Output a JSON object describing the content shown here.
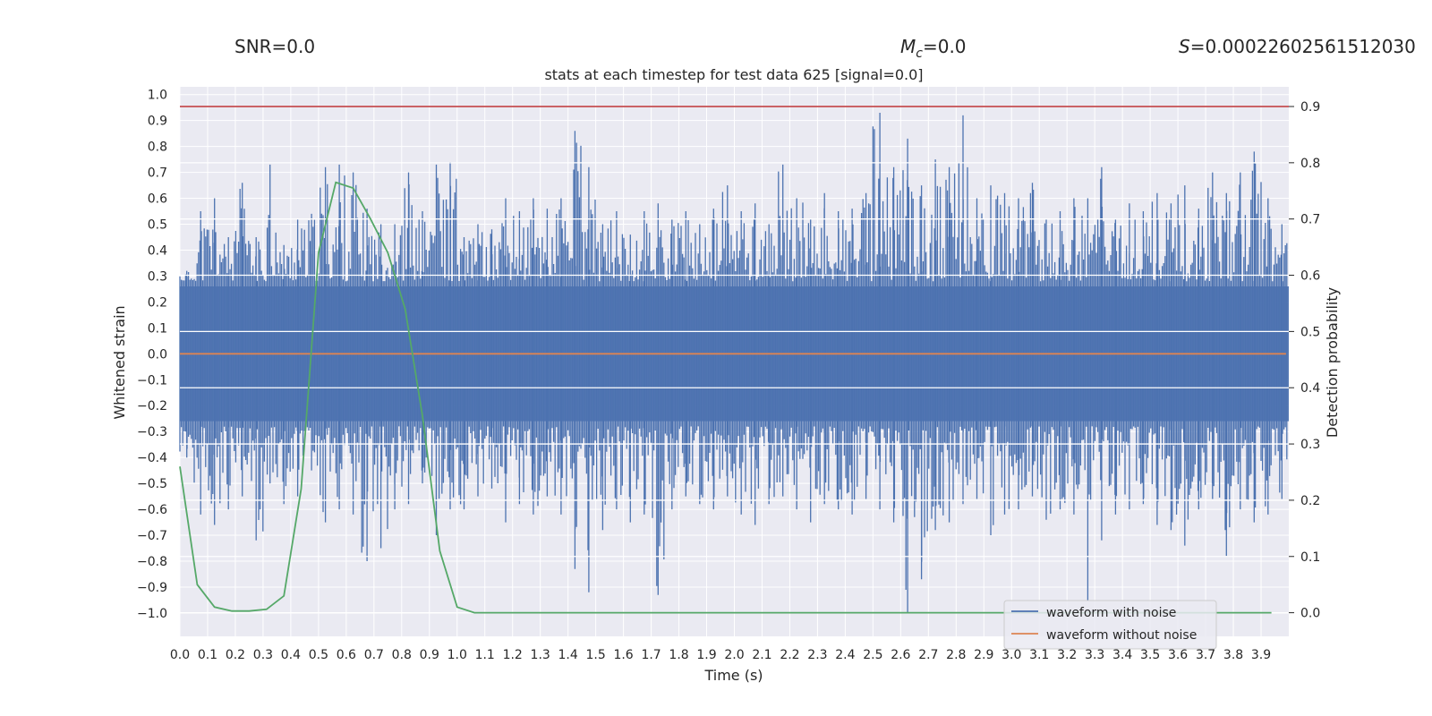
{
  "header": {
    "snr_label": "SNR=0.0",
    "mc_symbol": "M",
    "mc_sub": "c",
    "mc_value": "=0.0",
    "s_symbol": "S",
    "s_value": "=0.00022602561512030"
  },
  "chart_data": {
    "type": "line",
    "title": "stats at each timestep for test data 625 [signal=0.0]",
    "xlabel": "Time (s)",
    "ylabel": "Whitened strain",
    "y2label": "Detection probability",
    "xlim": [
      0.0,
      4.0
    ],
    "ylim": [
      -1.09,
      1.03
    ],
    "y2lim": [
      -0.042,
      0.935
    ],
    "grid": true,
    "legend": "lower-right",
    "x_ticks": [
      "0.0",
      "0.1",
      "0.2",
      "0.3",
      "0.4",
      "0.5",
      "0.6",
      "0.7",
      "0.8",
      "0.9",
      "1.0",
      "1.1",
      "1.2",
      "1.3",
      "1.4",
      "1.5",
      "1.6",
      "1.7",
      "1.8",
      "1.9",
      "2.0",
      "2.1",
      "2.2",
      "2.3",
      "2.4",
      "2.5",
      "2.6",
      "2.7",
      "2.8",
      "2.9",
      "3.0",
      "3.1",
      "3.2",
      "3.3",
      "3.4",
      "3.5",
      "3.6",
      "3.7",
      "3.8",
      "3.9"
    ],
    "y_ticks": [
      "1.0",
      "0.9",
      "0.8",
      "0.7",
      "0.6",
      "0.5",
      "0.4",
      "0.3",
      "0.2",
      "0.1",
      "0.0",
      "−0.1",
      "−0.2",
      "−0.3",
      "−0.4",
      "−0.5",
      "−0.6",
      "−0.7",
      "−0.8",
      "−0.9",
      "−1.0"
    ],
    "y2_ticks": [
      "0.9",
      "0.8",
      "0.7",
      "0.6",
      "0.5",
      "0.4",
      "0.3",
      "0.2",
      "0.1",
      "0.0"
    ],
    "threshold": {
      "y2": 0.9,
      "color": "#c44e52"
    },
    "series": [
      {
        "name": "waveform with noise",
        "axis": "left",
        "color": "#4c72b0",
        "x": [
          0.0,
          0.05,
          0.1,
          0.15,
          0.2,
          0.25,
          0.3,
          0.35,
          0.4,
          0.45,
          0.5,
          0.55,
          0.6,
          0.65,
          0.7,
          0.75,
          0.8,
          0.85,
          0.9,
          0.95,
          1.0,
          1.05,
          1.1,
          1.15,
          1.2,
          1.25,
          1.3,
          1.35,
          1.4,
          1.45,
          1.5,
          1.55,
          1.6,
          1.65,
          1.7,
          1.75,
          1.8,
          1.85,
          1.9,
          1.95,
          2.0,
          2.05,
          2.1,
          2.15,
          2.2,
          2.25,
          2.3,
          2.35,
          2.4,
          2.45,
          2.5,
          2.55,
          2.6,
          2.65,
          2.7,
          2.75,
          2.8,
          2.85,
          2.9,
          2.95,
          3.0,
          3.05,
          3.1,
          3.15,
          3.2,
          3.25,
          3.3,
          3.35,
          3.4,
          3.45,
          3.5,
          3.55,
          3.6,
          3.65,
          3.7,
          3.75,
          3.8,
          3.85,
          3.9,
          3.95
        ],
        "y_max": [
          0.32,
          0.55,
          0.6,
          0.45,
          0.66,
          0.45,
          0.73,
          0.42,
          0.52,
          0.54,
          0.72,
          0.73,
          0.7,
          0.56,
          0.5,
          0.5,
          0.7,
          0.55,
          0.73,
          0.74,
          0.45,
          0.5,
          0.48,
          0.6,
          0.55,
          0.6,
          0.56,
          0.6,
          0.86,
          0.72,
          0.5,
          0.55,
          0.46,
          0.55,
          0.58,
          0.52,
          0.55,
          0.5,
          0.56,
          0.65,
          0.55,
          0.58,
          0.5,
          0.73,
          0.6,
          0.52,
          0.62,
          0.55,
          0.56,
          0.62,
          0.93,
          0.72,
          0.83,
          0.65,
          0.75,
          0.72,
          0.92,
          0.6,
          0.65,
          0.62,
          0.6,
          0.66,
          0.52,
          0.55,
          0.6,
          0.6,
          0.72,
          0.52,
          0.58,
          0.55,
          0.62,
          0.58,
          0.65,
          0.56,
          0.7,
          0.62,
          0.7,
          0.78,
          0.6,
          0.5
        ],
        "y_min": [
          -0.4,
          -0.62,
          -0.66,
          -0.6,
          -0.55,
          -0.72,
          -0.5,
          -0.58,
          -0.55,
          -0.45,
          -0.65,
          -0.6,
          -0.62,
          -0.8,
          -0.75,
          -0.6,
          -0.58,
          -0.5,
          -0.7,
          -0.6,
          -0.6,
          -0.55,
          -0.52,
          -0.65,
          -0.58,
          -0.62,
          -0.55,
          -0.62,
          -0.83,
          -0.92,
          -0.68,
          -0.6,
          -0.65,
          -0.62,
          -0.93,
          -0.6,
          -0.55,
          -0.58,
          -0.6,
          -0.55,
          -0.62,
          -0.66,
          -0.58,
          -0.55,
          -0.6,
          -0.65,
          -0.58,
          -0.6,
          -0.62,
          -0.56,
          -0.6,
          -0.65,
          -1.0,
          -0.87,
          -0.68,
          -0.65,
          -0.58,
          -0.56,
          -0.7,
          -0.62,
          -0.6,
          -0.55,
          -0.64,
          -0.6,
          -0.62,
          -0.95,
          -0.72,
          -0.62,
          -0.6,
          -0.58,
          -0.66,
          -0.68,
          -0.74,
          -0.6,
          -0.56,
          -0.78,
          -0.6,
          -0.65,
          -0.62,
          -0.56
        ],
        "band": 0.26
      },
      {
        "name": "waveform without noise",
        "axis": "left",
        "color": "#dd8452",
        "x": [
          0.0,
          3.99
        ],
        "y": [
          0.0,
          0.0
        ]
      },
      {
        "axis": "right",
        "color": "#55a868",
        "x": [
          0.0,
          0.0625,
          0.125,
          0.1875,
          0.25,
          0.3125,
          0.375,
          0.4375,
          0.5,
          0.5625,
          0.625,
          0.6875,
          0.75,
          0.8125,
          0.875,
          0.9375,
          1.0,
          1.0625,
          1.125,
          3.9375
        ],
        "y": [
          0.26,
          0.05,
          0.01,
          0.003,
          0.003,
          0.006,
          0.03,
          0.22,
          0.64,
          0.765,
          0.755,
          0.7,
          0.64,
          0.54,
          0.35,
          0.11,
          0.01,
          0.0,
          0.0,
          0.0
        ]
      }
    ]
  }
}
